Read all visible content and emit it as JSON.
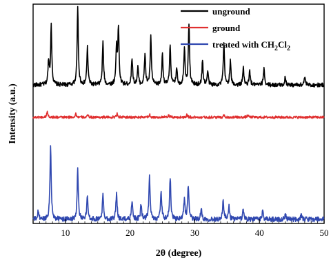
{
  "chart_data": {
    "type": "line",
    "title": "",
    "xlabel": "2θ (degree)",
    "ylabel": "Intensity (a.u.)",
    "xlim": [
      5,
      50
    ],
    "xticks": [
      10,
      20,
      30,
      40,
      50
    ],
    "ylim": [
      0,
      3.2
    ],
    "y_tick_labels_shown": false,
    "grid": false,
    "legend_position": "top-right",
    "colors": {
      "unground": "#000000",
      "ground": "#e03030",
      "treated": "#3048b0"
    },
    "legend": [
      {
        "key": "unground",
        "label": "unground"
      },
      {
        "key": "ground",
        "label": "ground"
      },
      {
        "key": "treated",
        "label_prefix": "treated with CH",
        "sub1": "2",
        "label_mid": "Cl",
        "sub2": "2"
      }
    ],
    "series": [
      {
        "key": "unground",
        "name": "unground",
        "baseline": 2.02,
        "noise": 0.03,
        "peaks": [
          [
            7.4,
            0.35
          ],
          [
            7.8,
            0.85
          ],
          [
            11.9,
            1.12
          ],
          [
            13.4,
            0.55
          ],
          [
            15.8,
            0.62
          ],
          [
            17.9,
            0.55
          ],
          [
            18.2,
            0.82
          ],
          [
            20.3,
            0.4
          ],
          [
            21.2,
            0.25
          ],
          [
            22.3,
            0.45
          ],
          [
            23.2,
            0.7
          ],
          [
            25.0,
            0.45
          ],
          [
            26.2,
            0.58
          ],
          [
            27.2,
            0.25
          ],
          [
            28.4,
            0.55
          ],
          [
            29.1,
            0.9
          ],
          [
            31.2,
            0.35
          ],
          [
            32.0,
            0.2
          ],
          [
            34.5,
            0.6
          ],
          [
            35.5,
            0.35
          ],
          [
            37.5,
            0.25
          ],
          [
            38.5,
            0.2
          ],
          [
            40.7,
            0.25
          ],
          [
            44.0,
            0.12
          ],
          [
            47.0,
            0.12
          ]
        ]
      },
      {
        "key": "ground",
        "name": "ground",
        "baseline": 1.55,
        "noise": 0.018,
        "peaks": [
          [
            7.2,
            0.08
          ],
          [
            11.6,
            0.05
          ],
          [
            13.5,
            0.03
          ],
          [
            18.0,
            0.05
          ],
          [
            23.0,
            0.04
          ],
          [
            26.0,
            0.03
          ],
          [
            28.8,
            0.04
          ],
          [
            34.5,
            0.03
          ],
          [
            38.2,
            0.03
          ]
        ]
      },
      {
        "key": "treated",
        "name": "treated with CH2Cl2",
        "baseline": 0.06,
        "noise": 0.035,
        "peaks": [
          [
            5.8,
            0.12
          ],
          [
            7.7,
            1.1
          ],
          [
            11.9,
            0.72
          ],
          [
            13.4,
            0.35
          ],
          [
            15.8,
            0.35
          ],
          [
            17.9,
            0.38
          ],
          [
            20.3,
            0.28
          ],
          [
            21.7,
            0.22
          ],
          [
            23.0,
            0.62
          ],
          [
            24.8,
            0.4
          ],
          [
            26.2,
            0.62
          ],
          [
            28.4,
            0.3
          ],
          [
            29.0,
            0.5
          ],
          [
            31.0,
            0.15
          ],
          [
            34.4,
            0.28
          ],
          [
            35.3,
            0.18
          ],
          [
            37.5,
            0.15
          ],
          [
            40.5,
            0.12
          ],
          [
            44.0,
            0.08
          ],
          [
            46.5,
            0.07
          ]
        ]
      }
    ]
  }
}
